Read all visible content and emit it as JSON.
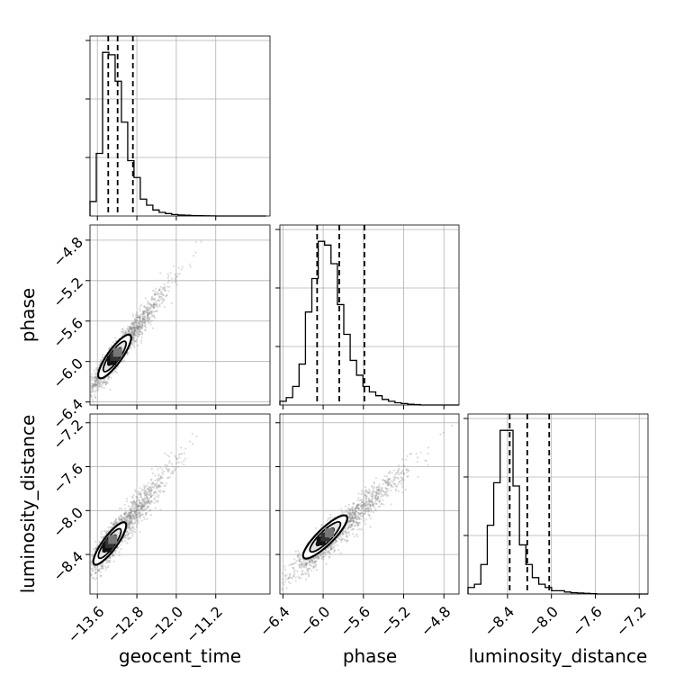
{
  "chart_data": {
    "type": "corner",
    "parameters": [
      {
        "name": "geocent_time",
        "range": [
          -13.75,
          -10.1
        ],
        "ticks": [
          -13.6,
          -12.8,
          -12.0,
          -11.2
        ],
        "tick_labels": [
          "−13.6",
          "−12.8",
          "−12.0",
          "−11.2"
        ],
        "quantiles": [
          -13.38,
          -13.19,
          -12.88
        ]
      },
      {
        "name": "phase",
        "range": [
          -6.43,
          -4.65
        ],
        "ticks": [
          -6.4,
          -6.0,
          -5.6,
          -5.2,
          -4.8
        ],
        "tick_labels": [
          "−6.4",
          "−6.0",
          "−5.6",
          "−5.2",
          "−4.8"
        ],
        "quantiles": [
          -6.06,
          -5.84,
          -5.59
        ]
      },
      {
        "name": "luminosity_distance",
        "range": [
          -8.76,
          -7.12
        ],
        "ticks": [
          -8.4,
          -8.0,
          -7.6,
          -7.2
        ],
        "tick_labels": [
          "−8.4",
          "−8.0",
          "−7.6",
          "−7.2"
        ],
        "quantiles": [
          -8.38,
          -8.22,
          -8.02
        ]
      }
    ],
    "histograms": [
      {
        "param": "geocent_time",
        "bin_edges_start": -13.75,
        "bin_width": 0.1275,
        "counts": [
          6,
          26,
          68,
          67,
          56,
          39,
          23,
          16,
          7,
          4.5,
          2.5,
          1.5,
          1,
          0.6,
          0.4,
          0.3,
          0.2,
          0.15,
          0.1,
          0.05,
          0,
          0,
          0,
          0,
          0,
          0,
          0,
          0
        ]
      },
      {
        "param": "phase",
        "bin_edges_start": -6.43,
        "bin_width": 0.0635,
        "counts": [
          1,
          2,
          5,
          11,
          25,
          34,
          44,
          43,
          38,
          27,
          19,
          12,
          8,
          5,
          3.5,
          2.5,
          1.5,
          1,
          0.6,
          0.4,
          0.2,
          0.1,
          0,
          0,
          0,
          0,
          0,
          0
        ]
      },
      {
        "param": "luminosity_distance",
        "bin_edges_start": -8.76,
        "bin_width": 0.0586,
        "counts": [
          2,
          3,
          9,
          21,
          34,
          50,
          50,
          33,
          15,
          9,
          5,
          3,
          2,
          1,
          1,
          0.6,
          0.4,
          0.3,
          0.2,
          0.1,
          0,
          0,
          0,
          0,
          0,
          0,
          0,
          0
        ]
      }
    ],
    "pairs": [
      {
        "x": "geocent_time",
        "y": "phase",
        "correlation": 0.93,
        "x_mean": -13.2,
        "y_mean": -5.92,
        "x_sd": 0.28,
        "y_sd": 0.19,
        "peak": [
          -13.25,
          -5.95
        ]
      },
      {
        "x": "geocent_time",
        "y": "luminosity_distance",
        "correlation": 0.9,
        "x_mean": -13.2,
        "y_mean": -8.22,
        "x_sd": 0.28,
        "y_sd": 0.17,
        "peak": [
          -13.35,
          -8.3
        ]
      },
      {
        "x": "phase",
        "y": "luminosity_distance",
        "correlation": 0.92,
        "x_mean": -5.9,
        "y_mean": -8.22,
        "x_sd": 0.19,
        "y_sd": 0.17,
        "peak": [
          -5.98,
          -8.24
        ]
      }
    ],
    "grid": true,
    "line_color": "#000000",
    "scatter_color": "#808080"
  }
}
